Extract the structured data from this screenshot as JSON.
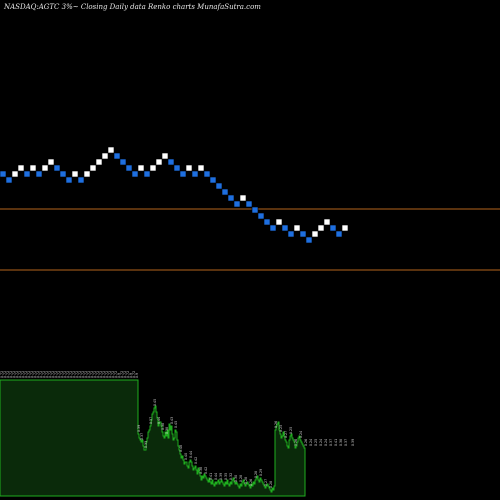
{
  "chart_data": {
    "type": "renko",
    "title": "NASDAQ:AGTC 3%~  Closing Daily data  Renko  charts MunafaSutra.com",
    "colors": {
      "up_brick": "#ffffff",
      "down_brick": "#1e6fe0",
      "brick_outline": "#000000",
      "reference_line": "#b5651d",
      "volume_fill": "#0a2a0a",
      "volume_outline": "#1fae1f",
      "volume_label": "#d8d8d8",
      "background": "#000000"
    },
    "reference_lines": [
      9,
      18
    ],
    "bricks": [
      {
        "level": 7,
        "dir": "down"
      },
      {
        "level": 6,
        "dir": "down"
      },
      {
        "level": 7,
        "dir": "up"
      },
      {
        "level": 8,
        "dir": "up"
      },
      {
        "level": 7,
        "dir": "down"
      },
      {
        "level": 8,
        "dir": "up"
      },
      {
        "level": 7,
        "dir": "down"
      },
      {
        "level": 8,
        "dir": "up"
      },
      {
        "level": 9,
        "dir": "up"
      },
      {
        "level": 8,
        "dir": "down"
      },
      {
        "level": 7,
        "dir": "down"
      },
      {
        "level": 6,
        "dir": "down"
      },
      {
        "level": 7,
        "dir": "up"
      },
      {
        "level": 6,
        "dir": "down"
      },
      {
        "level": 7,
        "dir": "up"
      },
      {
        "level": 8,
        "dir": "up"
      },
      {
        "level": 9,
        "dir": "up"
      },
      {
        "level": 10,
        "dir": "up"
      },
      {
        "level": 11,
        "dir": "up"
      },
      {
        "level": 10,
        "dir": "down"
      },
      {
        "level": 9,
        "dir": "down"
      },
      {
        "level": 8,
        "dir": "down"
      },
      {
        "level": 7,
        "dir": "down"
      },
      {
        "level": 8,
        "dir": "up"
      },
      {
        "level": 7,
        "dir": "down"
      },
      {
        "level": 8,
        "dir": "up"
      },
      {
        "level": 9,
        "dir": "up"
      },
      {
        "level": 10,
        "dir": "up"
      },
      {
        "level": 9,
        "dir": "down"
      },
      {
        "level": 8,
        "dir": "down"
      },
      {
        "level": 7,
        "dir": "down"
      },
      {
        "level": 8,
        "dir": "up"
      },
      {
        "level": 7,
        "dir": "down"
      },
      {
        "level": 8,
        "dir": "up"
      },
      {
        "level": 7,
        "dir": "down"
      },
      {
        "level": 6,
        "dir": "down"
      },
      {
        "level": 5,
        "dir": "down"
      },
      {
        "level": 4,
        "dir": "down"
      },
      {
        "level": 3,
        "dir": "down"
      },
      {
        "level": 2,
        "dir": "down"
      },
      {
        "level": 3,
        "dir": "up"
      },
      {
        "level": 2,
        "dir": "down"
      },
      {
        "level": 1,
        "dir": "down"
      },
      {
        "level": 0,
        "dir": "down"
      },
      {
        "level": -1,
        "dir": "down"
      },
      {
        "level": -2,
        "dir": "down"
      },
      {
        "level": -1,
        "dir": "up"
      },
      {
        "level": -2,
        "dir": "down"
      },
      {
        "level": -3,
        "dir": "down"
      },
      {
        "level": -2,
        "dir": "up"
      },
      {
        "level": -3,
        "dir": "down"
      },
      {
        "level": -4,
        "dir": "down"
      },
      {
        "level": -3,
        "dir": "up"
      },
      {
        "level": -2,
        "dir": "up"
      },
      {
        "level": -1,
        "dir": "up"
      },
      {
        "level": -2,
        "dir": "down"
      },
      {
        "level": -3,
        "dir": "down"
      },
      {
        "level": -2,
        "dir": "up"
      }
    ],
    "volume_heights": [
      116,
      116,
      116,
      116,
      116,
      116,
      116,
      116,
      116,
      116,
      116,
      116,
      116,
      116,
      116,
      116,
      116,
      116,
      116,
      116,
      116,
      116,
      116,
      116,
      116,
      116,
      116,
      116,
      116,
      116,
      116,
      116,
      116,
      116,
      116,
      116,
      116,
      116,
      116,
      116,
      116,
      116,
      116,
      116,
      116,
      116,
      116,
      116,
      116,
      116,
      116,
      116,
      116,
      116,
      116,
      116,
      116,
      116,
      116,
      116,
      116,
      116,
      116,
      116,
      116,
      116,
      116,
      116,
      116,
      116,
      116,
      116,
      116,
      116,
      116,
      116,
      116,
      116,
      116,
      116,
      116,
      116,
      116,
      116,
      116,
      116,
      116,
      116,
      116,
      116,
      116,
      116,
      116,
      116,
      116,
      116,
      116,
      116,
      116,
      116,
      116,
      116,
      116,
      116,
      116,
      116,
      116,
      116,
      116,
      116,
      116,
      116,
      116,
      116,
      116,
      116,
      116,
      116,
      116,
      116,
      116,
      116,
      116,
      116,
      116,
      116,
      116,
      116,
      116,
      116,
      116,
      116,
      116,
      116,
      116,
      116,
      116,
      116,
      62,
      58,
      56,
      54,
      56,
      50,
      46,
      46,
      54,
      58,
      64,
      66,
      70,
      76,
      82,
      84,
      88,
      90,
      84,
      78,
      70,
      74,
      74,
      70,
      64,
      60,
      58,
      64,
      60,
      66,
      58,
      72,
      66,
      70,
      62,
      56,
      58,
      66,
      64,
      56,
      50,
      46,
      42,
      38,
      40,
      36,
      32,
      34,
      34,
      30,
      28,
      34,
      36,
      34,
      30,
      26,
      28,
      30,
      26,
      22,
      28,
      24,
      20,
      16,
      20,
      18,
      22,
      20,
      18,
      16,
      14,
      18,
      14,
      12,
      16,
      12,
      10,
      14,
      12,
      14,
      16,
      12,
      14,
      16,
      14,
      12,
      10,
      14,
      12,
      16,
      12,
      10,
      14,
      12,
      16,
      18,
      14,
      12,
      14,
      12,
      10,
      8,
      12,
      10,
      14,
      16,
      12,
      10,
      12,
      14,
      12,
      10,
      8,
      12,
      10,
      14,
      12,
      16,
      18,
      20,
      16,
      14,
      18,
      16,
      14,
      12,
      10,
      8,
      10,
      12,
      10,
      8,
      6,
      4,
      8,
      6,
      10,
      66,
      70,
      72,
      74,
      66,
      62,
      58,
      60,
      64,
      60,
      56,
      54,
      50,
      48,
      56,
      60,
      62,
      58,
      56,
      54,
      48,
      50,
      54,
      58,
      60,
      56,
      54,
      52,
      50,
      48
    ],
    "volume_labels": [
      {
        "bar": 1,
        "text": "0.72"
      },
      {
        "bar": 4,
        "text": "0.72"
      },
      {
        "bar": 7,
        "text": "0.72"
      },
      {
        "bar": 10,
        "text": "0.72"
      },
      {
        "bar": 13,
        "text": "0.72"
      },
      {
        "bar": 16,
        "text": "0.72"
      },
      {
        "bar": 19,
        "text": "0.72"
      },
      {
        "bar": 22,
        "text": "0.72"
      },
      {
        "bar": 25,
        "text": "0.72"
      },
      {
        "bar": 28,
        "text": "0.72"
      },
      {
        "bar": 31,
        "text": "0.72"
      },
      {
        "bar": 34,
        "text": "0.72"
      },
      {
        "bar": 37,
        "text": "0.72"
      },
      {
        "bar": 40,
        "text": "0.72"
      },
      {
        "bar": 43,
        "text": "0.72"
      },
      {
        "bar": 46,
        "text": "0.72"
      },
      {
        "bar": 49,
        "text": "0.72"
      },
      {
        "bar": 52,
        "text": "0.72"
      },
      {
        "bar": 55,
        "text": "0.72"
      },
      {
        "bar": 58,
        "text": "0.72"
      },
      {
        "bar": 61,
        "text": "0.72"
      },
      {
        "bar": 64,
        "text": "0.72"
      },
      {
        "bar": 67,
        "text": "0.72"
      },
      {
        "bar": 70,
        "text": "0.72"
      },
      {
        "bar": 73,
        "text": "0.72"
      },
      {
        "bar": 76,
        "text": "0.72"
      },
      {
        "bar": 79,
        "text": "0.72"
      },
      {
        "bar": 82,
        "text": "0.72"
      },
      {
        "bar": 85,
        "text": "0.72"
      },
      {
        "bar": 88,
        "text": "0.72"
      },
      {
        "bar": 91,
        "text": "0.72"
      },
      {
        "bar": 94,
        "text": "0.72"
      },
      {
        "bar": 97,
        "text": "0.72"
      },
      {
        "bar": 100,
        "text": "0.72"
      },
      {
        "bar": 103,
        "text": "0.72"
      },
      {
        "bar": 106,
        "text": "0.72"
      },
      {
        "bar": 109,
        "text": "0.72"
      },
      {
        "bar": 112,
        "text": "0.72"
      },
      {
        "bar": 115,
        "text": "0.72"
      },
      {
        "bar": 118,
        "text": "0.9"
      },
      {
        "bar": 121,
        "text": "0.72"
      },
      {
        "bar": 124,
        "text": "0.72"
      },
      {
        "bar": 127,
        "text": "0.72"
      },
      {
        "bar": 130,
        "text": "0.9"
      },
      {
        "bar": 133,
        "text": "0.72"
      },
      {
        "bar": 136,
        "text": "0.9"
      },
      {
        "bar": 138,
        "text": "0.39"
      },
      {
        "bar": 141,
        "text": "0.37"
      },
      {
        "bar": 145,
        "text": "0.33"
      },
      {
        "bar": 150,
        "text": "0.37"
      },
      {
        "bar": 154,
        "text": "0.45"
      },
      {
        "bar": 158,
        "text": "0.44"
      },
      {
        "bar": 162,
        "text": "0.38"
      },
      {
        "bar": 166,
        "text": "0.38"
      },
      {
        "bar": 171,
        "text": "0.43"
      },
      {
        "bar": 175,
        "text": "0.45"
      },
      {
        "bar": 180,
        "text": "0.48"
      },
      {
        "bar": 185,
        "text": "0.40"
      },
      {
        "bar": 190,
        "text": "0.44"
      },
      {
        "bar": 195,
        "text": "0.42"
      },
      {
        "bar": 200,
        "text": "0.38"
      },
      {
        "bar": 205,
        "text": "0.42"
      },
      {
        "bar": 210,
        "text": "0.41"
      },
      {
        "bar": 215,
        "text": "0.44"
      },
      {
        "bar": 220,
        "text": "0.39"
      },
      {
        "bar": 225,
        "text": "0.35"
      },
      {
        "bar": 230,
        "text": "0.32"
      },
      {
        "bar": 235,
        "text": "0.30"
      },
      {
        "bar": 240,
        "text": "0.28"
      },
      {
        "bar": 245,
        "text": "0.28"
      },
      {
        "bar": 250,
        "text": "0.26"
      },
      {
        "bar": 255,
        "text": "0.28"
      },
      {
        "bar": 260,
        "text": "0.29"
      },
      {
        "bar": 265,
        "text": "0.27"
      },
      {
        "bar": 270,
        "text": "0.28"
      },
      {
        "bar": 275,
        "text": "0.26"
      },
      {
        "bar": 280,
        "text": "0.25"
      },
      {
        "bar": 285,
        "text": "0.27"
      },
      {
        "bar": 290,
        "text": "0.25"
      },
      {
        "bar": 295,
        "text": "0.26"
      },
      {
        "bar": 300,
        "text": "0.24"
      },
      {
        "bar": 305,
        "text": "0.26"
      },
      {
        "bar": 310,
        "text": "0.24"
      },
      {
        "bar": 315,
        "text": "0.25"
      },
      {
        "bar": 320,
        "text": "0.24"
      },
      {
        "bar": 325,
        "text": "0.24"
      },
      {
        "bar": 330,
        "text": "0.37"
      },
      {
        "bar": 335,
        "text": "0.41"
      },
      {
        "bar": 340,
        "text": "0.38"
      },
      {
        "bar": 345,
        "text": "0.37"
      },
      {
        "bar": 352,
        "text": "0.39"
      }
    ]
  }
}
